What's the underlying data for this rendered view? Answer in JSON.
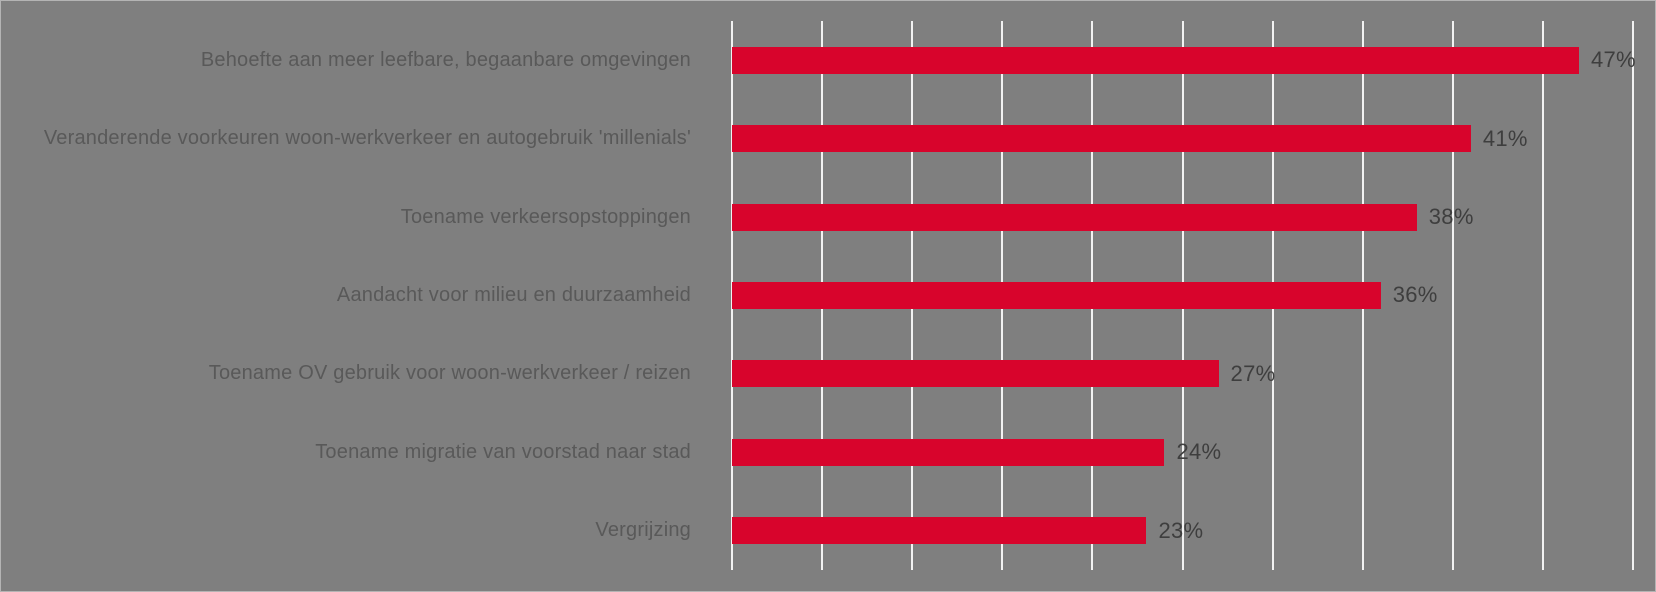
{
  "chart_data": {
    "type": "bar",
    "orientation": "horizontal",
    "title": "",
    "xlabel": "",
    "ylabel": "",
    "categories": [
      "Behoefte aan meer leefbare, begaanbare omgevingen",
      "Veranderende voorkeuren woon-werkverkeer en autogebruik 'millenials'",
      "Toename verkeersopstoppingen",
      "Aandacht voor milieu en duurzaamheid",
      "Toename OV gebruik voor woon-werkverkeer / reizen",
      "Toename migratie van voorstad naar stad",
      "Vergrijzing"
    ],
    "values": [
      47,
      41,
      38,
      36,
      27,
      24,
      23
    ],
    "value_labels": [
      "47%",
      "41%",
      "38%",
      "36%",
      "27%",
      "24%",
      "23%"
    ],
    "xlim": [
      0,
      50
    ],
    "gridline_step": 5,
    "grid": true,
    "legend_position": "none",
    "axis_tick_labels_visible": false
  },
  "colors": {
    "background": "#7F7F7F",
    "bar": "#D8042C",
    "gridline": "#F2F2F2",
    "category_label": "#595959",
    "value_label": "#3E3E3E",
    "frame_border": "#B4B4B4"
  }
}
